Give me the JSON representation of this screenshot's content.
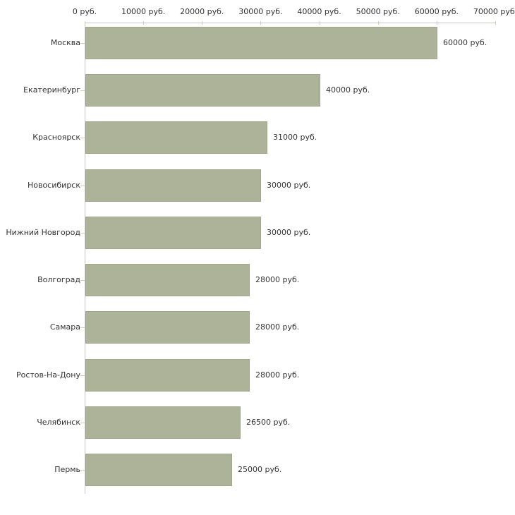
{
  "chart_data": {
    "type": "bar",
    "orientation": "horizontal",
    "title": "",
    "categories": [
      "Москва",
      "Екатеринбург",
      "Красноярск",
      "Новосибирск",
      "Нижний Новгород",
      "Волгоград",
      "Самара",
      "Ростов-На-Дону",
      "Челябинск",
      "Пермь"
    ],
    "values": [
      60000,
      40000,
      31000,
      30000,
      30000,
      28000,
      28000,
      28000,
      26500,
      25000
    ],
    "bar_labels": [
      "60000 руб.",
      "40000 руб.",
      "31000 руб.",
      "30000 руб.",
      "30000 руб.",
      "28000 руб.",
      "28000 руб.",
      "28000 руб.",
      "26500 руб.",
      "25000 руб."
    ],
    "x_axis": {
      "position": "top",
      "tick_values": [
        0,
        10000,
        20000,
        30000,
        40000,
        50000,
        60000,
        70000
      ],
      "tick_labels": [
        "0 руб.",
        "10000 руб.",
        "20000 руб.",
        "30000 руб.",
        "40000 руб.",
        "50000 руб.",
        "60000 руб.",
        "70000 руб."
      ],
      "xlim": [
        0,
        70000
      ]
    },
    "unit_suffix": " руб.",
    "grid": false,
    "legend": false,
    "colors": {
      "bar_fill": "#adb399",
      "bar_border": "#a1a88a",
      "axis_line": "#c6c6c6",
      "tick_mark": "#cdd0ae",
      "text": "#333333",
      "background": "#ffffff"
    }
  }
}
